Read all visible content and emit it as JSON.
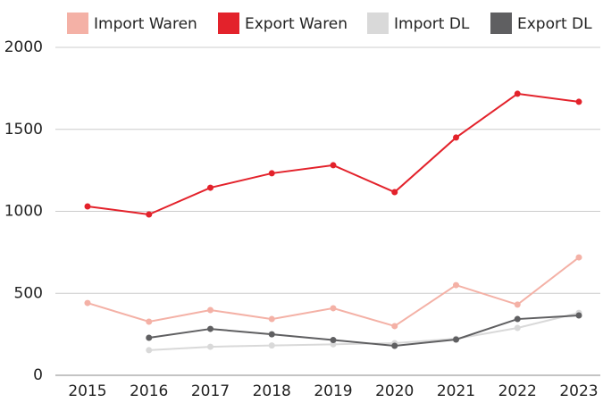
{
  "chart_data": {
    "type": "line",
    "x": [
      "2015",
      "2016",
      "2017",
      "2018",
      "2019",
      "2020",
      "2021",
      "2022",
      "2023"
    ],
    "series": [
      {
        "name": "Import Waren",
        "color": "#f4b1a6",
        "values": [
          441,
          327,
          398,
          343,
          409,
          300,
          550,
          431,
          719
        ]
      },
      {
        "name": "Export Waren",
        "color": "#e3222b",
        "values": [
          1030,
          981,
          1144,
          1232,
          1281,
          1117,
          1450,
          1717,
          1668
        ]
      },
      {
        "name": "Import DL",
        "color": "#d9d9d9",
        "values": [
          null,
          153,
          174,
          182,
          189,
          196,
          223,
          289,
          381
        ]
      },
      {
        "name": "Export DL",
        "color": "#5f5f61",
        "values": [
          null,
          229,
          283,
          250,
          215,
          180,
          218,
          343,
          365
        ]
      }
    ],
    "ylim": [
      0,
      2000
    ],
    "yticks": [
      0,
      500,
      1000,
      1500,
      2000
    ],
    "grid": true
  }
}
